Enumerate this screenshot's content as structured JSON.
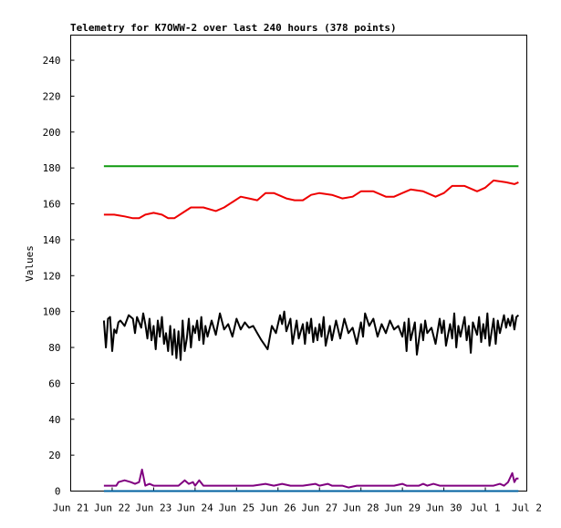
{
  "chart_data": {
    "type": "line",
    "title": "Telemetry for K7OWW-2 over last 240 hours (378 points)",
    "xlabel": "",
    "ylabel": "Values",
    "ylim": [
      0,
      254
    ],
    "xlim": [
      0,
      11.0
    ],
    "x_tick_labels": [
      "Jun 21",
      "Jun 22",
      "Jun 23",
      "Jun 24",
      "Jun 25",
      "Jun 26",
      "Jun 27",
      "Jun 28",
      "Jun 29",
      "Jun 30",
      "Jul 1",
      "Jul 2"
    ],
    "x_tick_values": [
      0,
      1,
      2,
      3,
      4,
      5,
      6,
      7,
      8,
      9,
      10,
      11
    ],
    "y_ticks": [
      0,
      20,
      40,
      60,
      80,
      100,
      120,
      140,
      160,
      180,
      200,
      220,
      240
    ],
    "grid": false,
    "series": [
      {
        "color": "#0f9a0f",
        "points": [
          [
            0.8,
            181
          ],
          [
            10.8,
            181
          ]
        ]
      },
      {
        "color": "#ee0000",
        "points": [
          [
            0.8,
            154
          ],
          [
            1.05,
            154
          ],
          [
            1.3,
            153
          ],
          [
            1.5,
            152
          ],
          [
            1.65,
            152
          ],
          [
            1.8,
            154
          ],
          [
            2.0,
            155
          ],
          [
            2.2,
            154
          ],
          [
            2.35,
            152
          ],
          [
            2.5,
            152
          ],
          [
            2.7,
            155
          ],
          [
            2.9,
            158
          ],
          [
            3.2,
            158
          ],
          [
            3.5,
            156
          ],
          [
            3.7,
            158
          ],
          [
            3.9,
            161
          ],
          [
            4.1,
            164
          ],
          [
            4.3,
            163
          ],
          [
            4.5,
            162
          ],
          [
            4.7,
            166
          ],
          [
            4.9,
            166
          ],
          [
            5.2,
            163
          ],
          [
            5.4,
            162
          ],
          [
            5.6,
            162
          ],
          [
            5.8,
            165
          ],
          [
            6.0,
            166
          ],
          [
            6.3,
            165
          ],
          [
            6.55,
            163
          ],
          [
            6.8,
            164
          ],
          [
            7.0,
            167
          ],
          [
            7.3,
            167
          ],
          [
            7.6,
            164
          ],
          [
            7.8,
            164
          ],
          [
            8.0,
            166
          ],
          [
            8.2,
            168
          ],
          [
            8.5,
            167
          ],
          [
            8.8,
            164
          ],
          [
            9.0,
            166
          ],
          [
            9.2,
            170
          ],
          [
            9.5,
            170
          ],
          [
            9.8,
            167
          ],
          [
            10.0,
            169
          ],
          [
            10.2,
            173
          ],
          [
            10.5,
            172
          ],
          [
            10.7,
            171
          ],
          [
            10.8,
            172
          ]
        ]
      },
      {
        "color": "#000000",
        "points": [
          [
            0.8,
            95
          ],
          [
            0.85,
            80
          ],
          [
            0.9,
            96
          ],
          [
            0.95,
            97
          ],
          [
            1.0,
            78
          ],
          [
            1.05,
            90
          ],
          [
            1.1,
            88
          ],
          [
            1.15,
            94
          ],
          [
            1.2,
            95
          ],
          [
            1.3,
            92
          ],
          [
            1.4,
            98
          ],
          [
            1.5,
            96
          ],
          [
            1.55,
            88
          ],
          [
            1.6,
            97
          ],
          [
            1.7,
            91
          ],
          [
            1.75,
            99
          ],
          [
            1.8,
            93
          ],
          [
            1.85,
            85
          ],
          [
            1.9,
            96
          ],
          [
            1.95,
            84
          ],
          [
            2.0,
            92
          ],
          [
            2.05,
            79
          ],
          [
            2.1,
            95
          ],
          [
            2.15,
            86
          ],
          [
            2.2,
            97
          ],
          [
            2.25,
            82
          ],
          [
            2.3,
            88
          ],
          [
            2.35,
            78
          ],
          [
            2.4,
            92
          ],
          [
            2.45,
            76
          ],
          [
            2.5,
            90
          ],
          [
            2.55,
            74
          ],
          [
            2.6,
            89
          ],
          [
            2.65,
            73
          ],
          [
            2.7,
            95
          ],
          [
            2.75,
            78
          ],
          [
            2.8,
            85
          ],
          [
            2.85,
            96
          ],
          [
            2.9,
            80
          ],
          [
            2.95,
            92
          ],
          [
            3.0,
            88
          ],
          [
            3.05,
            95
          ],
          [
            3.1,
            84
          ],
          [
            3.15,
            97
          ],
          [
            3.2,
            82
          ],
          [
            3.25,
            92
          ],
          [
            3.3,
            86
          ],
          [
            3.4,
            95
          ],
          [
            3.5,
            87
          ],
          [
            3.6,
            99
          ],
          [
            3.7,
            90
          ],
          [
            3.8,
            93
          ],
          [
            3.9,
            86
          ],
          [
            4.0,
            96
          ],
          [
            4.1,
            90
          ],
          [
            4.2,
            94
          ],
          [
            4.3,
            91
          ],
          [
            4.4,
            92
          ],
          [
            4.5,
            88
          ],
          [
            4.6,
            84
          ],
          [
            4.75,
            79
          ],
          [
            4.85,
            92
          ],
          [
            4.95,
            88
          ],
          [
            5.05,
            98
          ],
          [
            5.1,
            93
          ],
          [
            5.15,
            100
          ],
          [
            5.2,
            89
          ],
          [
            5.3,
            96
          ],
          [
            5.35,
            82
          ],
          [
            5.45,
            95
          ],
          [
            5.5,
            85
          ],
          [
            5.6,
            93
          ],
          [
            5.65,
            82
          ],
          [
            5.7,
            94
          ],
          [
            5.75,
            88
          ],
          [
            5.8,
            96
          ],
          [
            5.85,
            83
          ],
          [
            5.9,
            91
          ],
          [
            5.95,
            84
          ],
          [
            6.0,
            93
          ],
          [
            6.05,
            86
          ],
          [
            6.1,
            97
          ],
          [
            6.15,
            81
          ],
          [
            6.25,
            92
          ],
          [
            6.3,
            84
          ],
          [
            6.4,
            95
          ],
          [
            6.5,
            85
          ],
          [
            6.6,
            96
          ],
          [
            6.7,
            88
          ],
          [
            6.8,
            91
          ],
          [
            6.9,
            82
          ],
          [
            7.0,
            94
          ],
          [
            7.05,
            86
          ],
          [
            7.1,
            99
          ],
          [
            7.2,
            92
          ],
          [
            7.3,
            96
          ],
          [
            7.4,
            86
          ],
          [
            7.5,
            93
          ],
          [
            7.6,
            88
          ],
          [
            7.7,
            95
          ],
          [
            7.8,
            90
          ],
          [
            7.9,
            92
          ],
          [
            8.0,
            86
          ],
          [
            8.05,
            94
          ],
          [
            8.1,
            78
          ],
          [
            8.15,
            96
          ],
          [
            8.2,
            84
          ],
          [
            8.3,
            94
          ],
          [
            8.35,
            76
          ],
          [
            8.45,
            93
          ],
          [
            8.5,
            84
          ],
          [
            8.55,
            95
          ],
          [
            8.6,
            88
          ],
          [
            8.7,
            91
          ],
          [
            8.8,
            82
          ],
          [
            8.9,
            96
          ],
          [
            8.95,
            88
          ],
          [
            9.0,
            95
          ],
          [
            9.05,
            81
          ],
          [
            9.15,
            93
          ],
          [
            9.2,
            85
          ],
          [
            9.25,
            99
          ],
          [
            9.3,
            80
          ],
          [
            9.35,
            92
          ],
          [
            9.4,
            86
          ],
          [
            9.5,
            97
          ],
          [
            9.55,
            84
          ],
          [
            9.6,
            92
          ],
          [
            9.65,
            77
          ],
          [
            9.7,
            94
          ],
          [
            9.8,
            87
          ],
          [
            9.85,
            97
          ],
          [
            9.9,
            83
          ],
          [
            9.95,
            93
          ],
          [
            10.0,
            85
          ],
          [
            10.05,
            99
          ],
          [
            10.1,
            81
          ],
          [
            10.2,
            96
          ],
          [
            10.25,
            82
          ],
          [
            10.3,
            95
          ],
          [
            10.35,
            88
          ],
          [
            10.45,
            98
          ],
          [
            10.5,
            91
          ],
          [
            10.55,
            96
          ],
          [
            10.6,
            92
          ],
          [
            10.65,
            98
          ],
          [
            10.7,
            90
          ],
          [
            10.75,
            97
          ],
          [
            10.8,
            98
          ]
        ]
      },
      {
        "color": "#800080",
        "points": [
          [
            0.8,
            3
          ],
          [
            1.0,
            3
          ],
          [
            1.1,
            3
          ],
          [
            1.15,
            5
          ],
          [
            1.3,
            6
          ],
          [
            1.45,
            5
          ],
          [
            1.55,
            4
          ],
          [
            1.65,
            5
          ],
          [
            1.72,
            12
          ],
          [
            1.8,
            3
          ],
          [
            1.9,
            4
          ],
          [
            2.0,
            3
          ],
          [
            2.3,
            3
          ],
          [
            2.6,
            3
          ],
          [
            2.75,
            6
          ],
          [
            2.85,
            4
          ],
          [
            2.95,
            5
          ],
          [
            3.0,
            3
          ],
          [
            3.1,
            6
          ],
          [
            3.2,
            3
          ],
          [
            3.5,
            3
          ],
          [
            3.8,
            3
          ],
          [
            4.1,
            3
          ],
          [
            4.4,
            3
          ],
          [
            4.7,
            4
          ],
          [
            4.9,
            3
          ],
          [
            5.1,
            4
          ],
          [
            5.3,
            3
          ],
          [
            5.6,
            3
          ],
          [
            5.9,
            4
          ],
          [
            6.0,
            3
          ],
          [
            6.2,
            4
          ],
          [
            6.3,
            3
          ],
          [
            6.55,
            3
          ],
          [
            6.7,
            2
          ],
          [
            6.9,
            3
          ],
          [
            7.2,
            3
          ],
          [
            7.5,
            3
          ],
          [
            7.8,
            3
          ],
          [
            8.0,
            4
          ],
          [
            8.1,
            3
          ],
          [
            8.4,
            3
          ],
          [
            8.5,
            4
          ],
          [
            8.6,
            3
          ],
          [
            8.75,
            4
          ],
          [
            8.9,
            3
          ],
          [
            9.2,
            3
          ],
          [
            9.5,
            3
          ],
          [
            9.8,
            3
          ],
          [
            10.0,
            3
          ],
          [
            10.2,
            3
          ],
          [
            10.35,
            4
          ],
          [
            10.45,
            3
          ],
          [
            10.55,
            5
          ],
          [
            10.65,
            10
          ],
          [
            10.7,
            5
          ],
          [
            10.75,
            7
          ],
          [
            10.8,
            7
          ]
        ]
      },
      {
        "color": "#0060a0",
        "points": [
          [
            0.8,
            0
          ],
          [
            10.8,
            0
          ]
        ]
      }
    ]
  }
}
